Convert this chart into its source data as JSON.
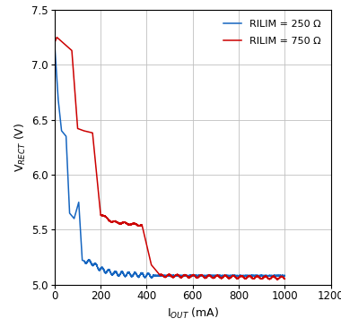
{
  "title": "",
  "xlabel": "I$_{OUT}$ (mA)",
  "ylabel": "V$_{RECT}$ (V)",
  "xlim": [
    0,
    1200
  ],
  "ylim": [
    5.0,
    7.5
  ],
  "xticks": [
    0,
    200,
    400,
    600,
    800,
    1000,
    1200
  ],
  "yticks": [
    5.0,
    5.5,
    6.0,
    6.5,
    7.0,
    7.5
  ],
  "legend": [
    "RILIM = 250 Ω",
    "RILIM = 750 Ω"
  ],
  "line_colors": [
    "#1565c0",
    "#cc0000"
  ],
  "background_color": "#ffffff",
  "grid_color": "#c0c0c0"
}
